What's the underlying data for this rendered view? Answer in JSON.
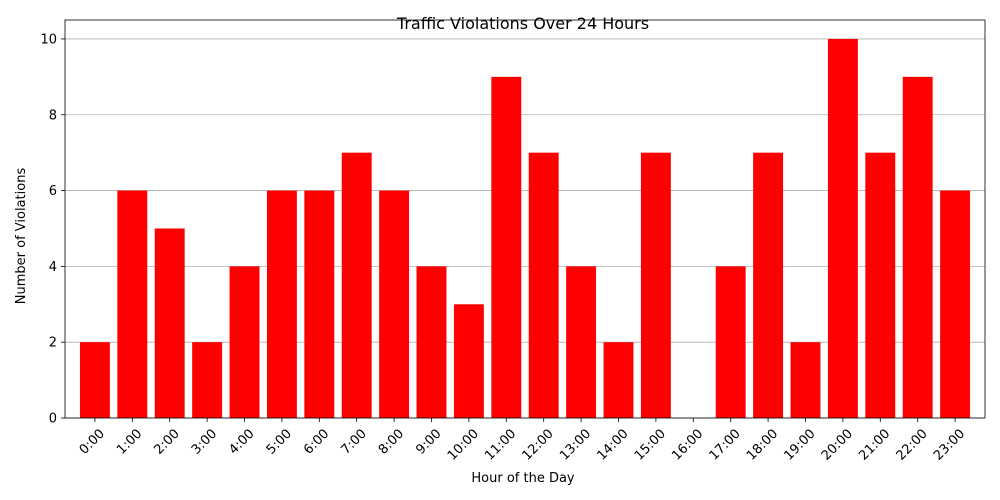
{
  "chart_data": {
    "type": "bar",
    "title": "Traffic Violations Over 24 Hours",
    "xlabel": "Hour of the Day",
    "ylabel": "Number of Violations",
    "categories": [
      "0:00",
      "1:00",
      "2:00",
      "3:00",
      "4:00",
      "5:00",
      "6:00",
      "7:00",
      "8:00",
      "9:00",
      "10:00",
      "11:00",
      "12:00",
      "13:00",
      "14:00",
      "15:00",
      "16:00",
      "17:00",
      "18:00",
      "19:00",
      "20:00",
      "21:00",
      "22:00",
      "23:00"
    ],
    "values": [
      2,
      6,
      5,
      2,
      4,
      6,
      6,
      7,
      6,
      4,
      3,
      9,
      7,
      4,
      2,
      7,
      0,
      4,
      7,
      2,
      10,
      7,
      9,
      6
    ],
    "ylim": [
      0,
      10.5
    ],
    "yticks": [
      0,
      2,
      4,
      6,
      8,
      10
    ],
    "grid": "y-axis horizontal",
    "bar_color": "#ff0000",
    "xtick_rotation": 45
  }
}
